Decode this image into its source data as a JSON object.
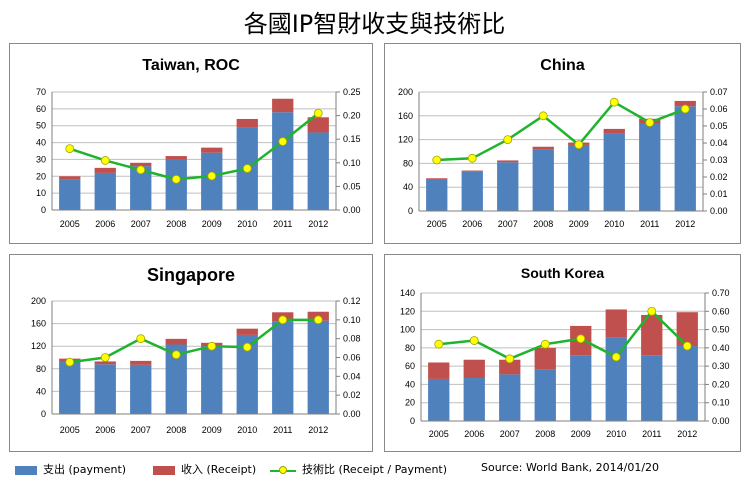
{
  "title": "各國IP智財收支與技術比",
  "legend": {
    "payment": "支出 (payment)",
    "receipt": "收入 (Receipt)",
    "ratio": "技術比 (Receipt / Payment)"
  },
  "source": "Source: World Bank, 2014/01/20",
  "colors": {
    "payment": "#4f81bd",
    "receipt": "#c0504d",
    "ratio_line": "#1fb32e",
    "ratio_marker": "#ffff00"
  },
  "chart_data": [
    {
      "type": "bar",
      "title": "Taiwan, ROC",
      "categories": [
        "2005",
        "2006",
        "2007",
        "2008",
        "2009",
        "2010",
        "2011",
        "2012"
      ],
      "stacked": true,
      "series": [
        {
          "name": "支出 (payment)",
          "values": [
            18,
            22,
            26,
            30,
            34,
            49,
            58,
            46
          ]
        },
        {
          "name": "收入 (Receipt)",
          "values": [
            2,
            3,
            2,
            2,
            3,
            5,
            8,
            9
          ]
        },
        {
          "name": "技術比 (Receipt / Payment)",
          "type": "line",
          "axis": "secondary",
          "values": [
            0.13,
            0.105,
            0.085,
            0.065,
            0.072,
            0.088,
            0.145,
            0.205
          ]
        }
      ],
      "ylim": [
        0,
        70
      ],
      "yticks": [
        0,
        10,
        20,
        30,
        40,
        50,
        60,
        70
      ],
      "y2lim": [
        0,
        0.25
      ],
      "y2ticks": [
        "0.00",
        "0.05",
        "0.10",
        "0.15",
        "0.20",
        "0.25"
      ],
      "grid": true
    },
    {
      "type": "bar",
      "title": "China",
      "categories": [
        "2005",
        "2006",
        "2007",
        "2008",
        "2009",
        "2010",
        "2011",
        "2012"
      ],
      "stacked": true,
      "series": [
        {
          "name": "支出 (payment)",
          "values": [
            53,
            66,
            82,
            103,
            111,
            130,
            147,
            176
          ]
        },
        {
          "name": "收入 (Receipt)",
          "values": [
            2,
            2,
            3,
            5,
            4,
            8,
            8,
            9
          ]
        },
        {
          "name": "技術比 (Receipt / Payment)",
          "type": "line",
          "axis": "secondary",
          "values": [
            0.03,
            0.031,
            0.042,
            0.056,
            0.039,
            0.064,
            0.052,
            0.06
          ]
        }
      ],
      "ylim": [
        0,
        200
      ],
      "yticks": [
        0,
        40,
        80,
        120,
        160,
        200
      ],
      "y2lim": [
        0,
        0.07
      ],
      "y2ticks": [
        "0.00",
        "0.01",
        "0.02",
        "0.03",
        "0.04",
        "0.05",
        "0.06",
        "0.07"
      ],
      "grid": true
    },
    {
      "type": "bar",
      "title": "Singapore",
      "categories": [
        "2005",
        "2006",
        "2007",
        "2008",
        "2009",
        "2010",
        "2011",
        "2012"
      ],
      "stacked": true,
      "series": [
        {
          "name": "支出 (payment)",
          "values": [
            93,
            88,
            87,
            123,
            120,
            140,
            164,
            165
          ]
        },
        {
          "name": "收入 (Receipt)",
          "values": [
            5,
            5,
            7,
            10,
            6,
            11,
            16,
            16
          ]
        },
        {
          "name": "技術比 (Receipt / Payment)",
          "type": "line",
          "axis": "secondary",
          "values": [
            0.055,
            0.06,
            0.08,
            0.063,
            0.072,
            0.071,
            0.1,
            0.1
          ]
        }
      ],
      "ylim": [
        0,
        200
      ],
      "yticks": [
        0,
        40,
        80,
        120,
        160,
        200
      ],
      "y2lim": [
        0,
        0.12
      ],
      "y2ticks": [
        "0.00",
        "0.02",
        "0.04",
        "0.06",
        "0.08",
        "0.10",
        "0.12"
      ],
      "grid": true
    },
    {
      "type": "bar",
      "title": "South Korea",
      "categories": [
        "2005",
        "2006",
        "2007",
        "2008",
        "2009",
        "2010",
        "2011",
        "2012"
      ],
      "stacked": true,
      "series": [
        {
          "name": "支出 (payment)",
          "values": [
            46,
            47,
            51,
            56,
            72,
            91,
            72,
            82
          ]
        },
        {
          "name": "收入 (Receipt)",
          "values": [
            18,
            20,
            16,
            24,
            32,
            31,
            44,
            37
          ]
        },
        {
          "name": "技術比 (Receipt / Payment)",
          "type": "line",
          "axis": "secondary",
          "values": [
            0.42,
            0.44,
            0.34,
            0.42,
            0.45,
            0.35,
            0.6,
            0.41
          ]
        }
      ],
      "ylim": [
        0,
        140
      ],
      "yticks": [
        0,
        20,
        40,
        60,
        80,
        100,
        120,
        140
      ],
      "y2lim": [
        0,
        0.7
      ],
      "y2ticks": [
        "0.00",
        "0.10",
        "0.20",
        "0.30",
        "0.40",
        "0.50",
        "0.60",
        "0.70"
      ],
      "grid": true
    }
  ]
}
